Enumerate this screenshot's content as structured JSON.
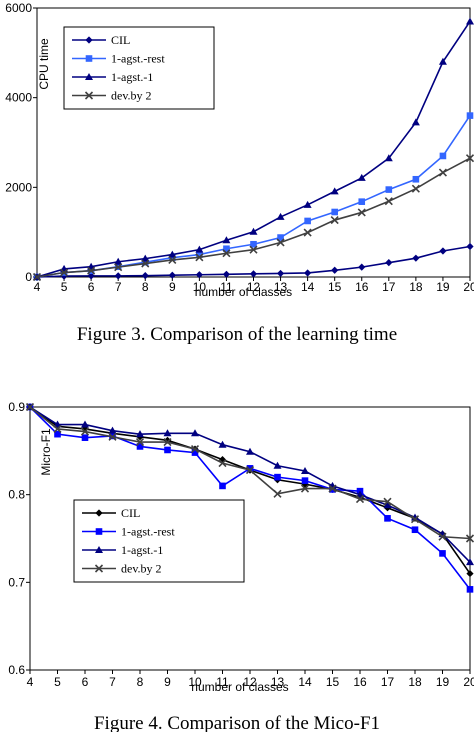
{
  "captions": {
    "figure3": "Figure 3. Comparison of the learning time",
    "figure4": "Figure 4. Comparison of the Mico-F1"
  },
  "chart_data": [
    {
      "type": "line",
      "caption": "Figure 3. Comparison of the learning time",
      "xlabel": "number of classes",
      "ylabel": "CPU time",
      "x": [
        4,
        5,
        6,
        7,
        8,
        9,
        10,
        11,
        12,
        13,
        14,
        15,
        16,
        17,
        18,
        19,
        20
      ],
      "xlim": [
        4,
        20
      ],
      "ylim": [
        0,
        6000
      ],
      "yticks": [
        0,
        2000,
        4000,
        6000
      ],
      "grid": false,
      "legend_position": "top-left",
      "series": [
        {
          "name": "CIL",
          "marker": "diamond",
          "color": "#000080",
          "values": [
            0,
            20,
            25,
            25,
            30,
            40,
            50,
            60,
            70,
            80,
            90,
            150,
            220,
            320,
            420,
            580,
            680
          ]
        },
        {
          "name": "1-agst.-rest",
          "marker": "square",
          "color": "#3366ff",
          "values": [
            0,
            100,
            140,
            230,
            330,
            430,
            500,
            630,
            730,
            880,
            1250,
            1450,
            1680,
            1950,
            2180,
            2700,
            3600
          ]
        },
        {
          "name": "1-agst.-1",
          "marker": "triangle",
          "color": "#000080",
          "values": [
            0,
            180,
            230,
            340,
            410,
            500,
            610,
            820,
            1010,
            1340,
            1610,
            1910,
            2210,
            2650,
            3450,
            4800,
            5700
          ]
        },
        {
          "name": "dev.by 2",
          "marker": "x",
          "color": "#404040",
          "values": [
            0,
            100,
            140,
            220,
            300,
            380,
            440,
            530,
            610,
            770,
            990,
            1270,
            1440,
            1690,
            1970,
            2330,
            2650
          ]
        }
      ]
    },
    {
      "type": "line",
      "caption": "Figure 4. Comparison of the Mico-F1",
      "xlabel": "number of classes",
      "ylabel": "Micro-F1",
      "x": [
        4,
        5,
        6,
        7,
        8,
        9,
        10,
        11,
        12,
        13,
        14,
        15,
        16,
        17,
        18,
        19,
        20
      ],
      "xlim": [
        4,
        20
      ],
      "ylim": [
        0.6,
        0.9
      ],
      "yticks": [
        0.6,
        0.7,
        0.8,
        0.9
      ],
      "grid": false,
      "legend_position": "bottom-left",
      "series": [
        {
          "name": "CIL",
          "marker": "diamond",
          "color": "#000000",
          "values": [
            0.9,
            0.878,
            0.875,
            0.87,
            0.866,
            0.862,
            0.852,
            0.84,
            0.828,
            0.817,
            0.812,
            0.806,
            0.797,
            0.785,
            0.773,
            0.755,
            0.71
          ]
        },
        {
          "name": "1-agst.-rest",
          "marker": "square",
          "color": "#0000ff",
          "values": [
            0.9,
            0.869,
            0.865,
            0.867,
            0.855,
            0.851,
            0.848,
            0.81,
            0.83,
            0.82,
            0.816,
            0.806,
            0.804,
            0.773,
            0.76,
            0.733,
            0.692
          ]
        },
        {
          "name": "1-agst.-1",
          "marker": "triangle",
          "color": "#000080",
          "values": [
            0.9,
            0.88,
            0.88,
            0.873,
            0.869,
            0.87,
            0.87,
            0.857,
            0.849,
            0.833,
            0.827,
            0.81,
            0.8,
            0.788,
            0.774,
            0.755,
            0.723
          ]
        },
        {
          "name": "dev.by 2",
          "marker": "x",
          "color": "#404040",
          "values": [
            0.9,
            0.875,
            0.872,
            0.866,
            0.86,
            0.86,
            0.852,
            0.836,
            0.828,
            0.801,
            0.807,
            0.807,
            0.795,
            0.792,
            0.772,
            0.752,
            0.75
          ]
        }
      ]
    }
  ]
}
